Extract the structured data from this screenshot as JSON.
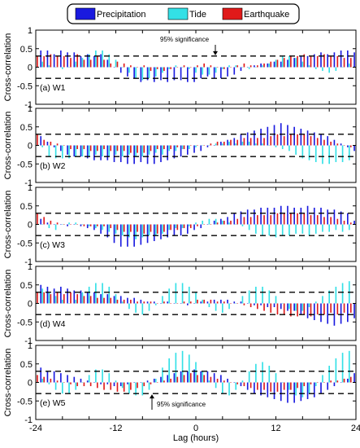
{
  "legend": {
    "items": [
      {
        "label": "Precipitation",
        "color": "#1a1adf"
      },
      {
        "label": "Tide",
        "color": "#33e0e6"
      },
      {
        "label": "Earthquake",
        "color": "#e01a1a"
      }
    ]
  },
  "chart_data": {
    "type": "bar",
    "xlabel": "Lag (hours)",
    "ylabel": "Cross-correlation",
    "xlim": [
      -24,
      24
    ],
    "ylim": [
      -1,
      1
    ],
    "x_ticks": [
      "-24",
      "-12",
      "0",
      "12",
      "24"
    ],
    "y_ticks": [
      "1",
      "0.5",
      "0",
      "-0.5",
      "-1"
    ],
    "significance_level": 0.3,
    "annotations": [
      {
        "panel": 0,
        "text": "95% significance"
      },
      {
        "panel": 4,
        "text": "95% significance"
      }
    ],
    "x": [
      -24,
      -23,
      -22,
      -21,
      -20,
      -19,
      -18,
      -17,
      -16,
      -15,
      -14,
      -13,
      -12,
      -11,
      -10,
      -9,
      -8,
      -7,
      -6,
      -5,
      -4,
      -3,
      -2,
      -1,
      0,
      1,
      2,
      3,
      4,
      5,
      6,
      7,
      8,
      9,
      10,
      11,
      12,
      13,
      14,
      15,
      16,
      17,
      18,
      19,
      20,
      21,
      22,
      23,
      24
    ],
    "panels": [
      {
        "label": "(a) W1",
        "series": [
          {
            "name": "Precipitation",
            "values": [
              0.4,
              0.45,
              0.45,
              0.35,
              0.45,
              0.4,
              0.4,
              0.3,
              0.35,
              0.3,
              0.35,
              0.2,
              0.0,
              -0.15,
              -0.25,
              -0.3,
              -0.4,
              -0.35,
              -0.4,
              -0.35,
              -0.4,
              -0.35,
              -0.35,
              -0.4,
              -0.4,
              -0.3,
              -0.25,
              -0.3,
              -0.3,
              -0.25,
              -0.2,
              -0.1,
              0.0,
              0.05,
              0.1,
              0.1,
              0.15,
              0.15,
              0.2,
              0.25,
              0.3,
              0.3,
              0.35,
              0.4,
              0.35,
              0.4,
              0.45,
              0.45,
              0.4
            ]
          },
          {
            "name": "Tide",
            "values": [
              0.25,
              0.15,
              0.05,
              0.0,
              -0.05,
              0.0,
              0.15,
              0.25,
              0.35,
              0.45,
              0.45,
              0.35,
              0.2,
              0.0,
              -0.15,
              -0.3,
              -0.35,
              -0.3,
              -0.25,
              -0.15,
              -0.05,
              0.05,
              0.0,
              -0.05,
              -0.15,
              -0.2,
              -0.2,
              -0.15,
              -0.05,
              0.05,
              0.05,
              0.0,
              -0.05,
              0.0,
              0.05,
              0.1,
              0.2,
              0.3,
              0.3,
              0.25,
              0.15,
              0.05,
              -0.05,
              -0.1,
              -0.15,
              -0.1,
              0.0,
              0.1,
              -0.3
            ]
          },
          {
            "name": "Earthquake",
            "values": [
              0.3,
              0.3,
              0.35,
              0.3,
              0.3,
              0.25,
              0.35,
              0.2,
              0.2,
              0.3,
              0.2,
              0.1,
              0.15,
              0.1,
              0.05,
              0.0,
              0.05,
              -0.1,
              -0.05,
              -0.1,
              -0.05,
              0.0,
              0.05,
              0.0,
              0.05,
              0.1,
              0.05,
              0.0,
              -0.05,
              0.0,
              0.05,
              0.1,
              0.05,
              0.05,
              0.1,
              0.15,
              0.2,
              0.25,
              0.3,
              0.3,
              0.35,
              0.3,
              0.3,
              0.35,
              0.3,
              0.3,
              0.25,
              0.25,
              0.3
            ]
          }
        ]
      },
      {
        "label": "(b) W2",
        "series": [
          {
            "name": "Precipitation",
            "values": [
              0.35,
              0.25,
              0.1,
              -0.05,
              -0.15,
              -0.25,
              -0.3,
              -0.3,
              -0.35,
              -0.4,
              -0.4,
              -0.4,
              -0.45,
              -0.45,
              -0.5,
              -0.5,
              -0.45,
              -0.5,
              -0.5,
              -0.45,
              -0.4,
              -0.35,
              -0.3,
              -0.25,
              -0.2,
              -0.15,
              -0.05,
              0.0,
              0.1,
              0.15,
              0.2,
              0.3,
              0.35,
              0.4,
              0.45,
              0.5,
              0.55,
              0.6,
              0.55,
              0.5,
              0.45,
              0.4,
              0.35,
              0.3,
              0.25,
              0.15,
              0.05,
              -0.05,
              -0.15
            ]
          },
          {
            "name": "Tide",
            "values": [
              0.25,
              -0.05,
              -0.3,
              -0.35,
              -0.35,
              -0.35,
              -0.3,
              -0.3,
              -0.3,
              -0.25,
              -0.3,
              -0.3,
              -0.25,
              -0.3,
              -0.25,
              -0.3,
              -0.3,
              -0.25,
              -0.2,
              -0.25,
              -0.15,
              -0.15,
              -0.1,
              -0.1,
              -0.05,
              0.0,
              0.0,
              0.05,
              0.05,
              0.1,
              0.05,
              0.1,
              0.1,
              0.05,
              0.05,
              0.0,
              -0.05,
              -0.1,
              -0.15,
              -0.25,
              -0.35,
              -0.4,
              -0.45,
              -0.5,
              -0.5,
              -0.45,
              -0.45,
              -0.4,
              -0.35
            ]
          },
          {
            "name": "Earthquake",
            "values": [
              0.3,
              0.15,
              0.1,
              0.05,
              0.0,
              -0.1,
              -0.1,
              -0.1,
              -0.15,
              -0.15,
              -0.1,
              -0.15,
              -0.15,
              -0.15,
              -0.2,
              -0.2,
              -0.2,
              -0.15,
              -0.1,
              -0.1,
              -0.1,
              -0.05,
              -0.1,
              0.0,
              0.0,
              0.0,
              0.05,
              0.1,
              0.1,
              0.15,
              0.15,
              0.2,
              0.2,
              0.2,
              0.2,
              0.25,
              0.3,
              0.25,
              0.3,
              0.3,
              0.3,
              0.25,
              0.2,
              0.15,
              0.1,
              0.05,
              0.0,
              -0.05,
              -0.15
            ]
          }
        ]
      },
      {
        "label": "(c) W3",
        "series": [
          {
            "name": "Precipitation",
            "values": [
              0.25,
              0.15,
              0.05,
              0.0,
              0.0,
              -0.05,
              0.0,
              -0.05,
              -0.1,
              -0.15,
              -0.25,
              -0.35,
              -0.5,
              -0.6,
              -0.6,
              -0.6,
              -0.55,
              -0.5,
              -0.45,
              -0.4,
              -0.35,
              -0.3,
              -0.3,
              -0.25,
              -0.15,
              -0.1,
              0.0,
              0.1,
              0.15,
              0.2,
              0.3,
              0.35,
              0.4,
              0.4,
              0.45,
              0.45,
              0.45,
              0.5,
              0.5,
              0.45,
              0.45,
              0.5,
              0.45,
              0.45,
              0.4,
              0.4,
              0.35,
              0.3,
              0.1
            ]
          },
          {
            "name": "Tide",
            "values": [
              0.15,
              0.0,
              -0.1,
              -0.15,
              0.0,
              0.05,
              0.05,
              0.0,
              -0.05,
              -0.1,
              -0.15,
              -0.2,
              -0.25,
              -0.3,
              -0.35,
              -0.4,
              -0.35,
              -0.3,
              -0.3,
              -0.25,
              -0.15,
              -0.1,
              -0.1,
              -0.05,
              0.05,
              0.1,
              0.15,
              0.15,
              0.1,
              0.05,
              0.0,
              -0.05,
              -0.15,
              -0.25,
              -0.3,
              -0.3,
              -0.35,
              -0.3,
              -0.3,
              -0.25,
              -0.25,
              -0.3,
              -0.25,
              -0.2,
              -0.2,
              -0.15,
              -0.2,
              -0.15,
              -0.15
            ]
          },
          {
            "name": "Earthquake",
            "values": [
              0.3,
              0.2,
              0.1,
              0.05,
              0.0,
              0.0,
              0.0,
              -0.05,
              -0.05,
              -0.05,
              -0.05,
              -0.1,
              -0.15,
              -0.2,
              -0.2,
              -0.2,
              -0.25,
              -0.2,
              -0.25,
              -0.2,
              -0.15,
              -0.15,
              -0.1,
              -0.1,
              -0.05,
              0.0,
              0.0,
              0.05,
              0.1,
              0.1,
              0.15,
              0.2,
              0.2,
              0.25,
              0.25,
              0.25,
              0.3,
              0.3,
              0.3,
              0.3,
              0.3,
              0.25,
              0.25,
              0.2,
              0.2,
              0.15,
              0.1,
              0.05,
              -0.15
            ]
          }
        ]
      },
      {
        "label": "(d) W4",
        "series": [
          {
            "name": "Precipitation",
            "values": [
              0.5,
              0.5,
              0.45,
              0.4,
              0.45,
              0.4,
              0.35,
              0.35,
              0.3,
              0.3,
              0.25,
              0.25,
              0.2,
              0.2,
              0.15,
              0.15,
              0.1,
              0.05,
              0.05,
              0.0,
              0.05,
              0.0,
              0.0,
              -0.05,
              0.0,
              0.05,
              0.05,
              0.1,
              0.1,
              0.1,
              0.05,
              0.05,
              0.0,
              -0.05,
              -0.05,
              -0.1,
              -0.1,
              -0.15,
              -0.2,
              -0.2,
              -0.3,
              -0.4,
              -0.45,
              -0.5,
              -0.55,
              -0.6,
              -0.55,
              -0.5,
              -0.4
            ]
          },
          {
            "name": "Tide",
            "values": [
              0.5,
              0.4,
              0.3,
              0.2,
              0.1,
              0.0,
              0.1,
              0.3,
              0.45,
              0.55,
              0.55,
              0.45,
              0.25,
              0.05,
              -0.15,
              -0.25,
              -0.3,
              -0.2,
              -0.05,
              0.2,
              0.4,
              0.55,
              0.55,
              0.45,
              0.3,
              0.1,
              -0.1,
              -0.2,
              -0.25,
              -0.15,
              0.0,
              0.2,
              0.35,
              0.45,
              0.45,
              0.35,
              0.2,
              0.0,
              -0.15,
              -0.2,
              -0.2,
              -0.1,
              0.05,
              0.2,
              0.35,
              0.45,
              0.55,
              0.6,
              0.55
            ]
          },
          {
            "name": "Earthquake",
            "values": [
              0.3,
              0.3,
              0.25,
              0.3,
              0.25,
              0.3,
              0.25,
              0.2,
              0.2,
              0.15,
              0.15,
              0.15,
              0.1,
              0.1,
              0.1,
              0.05,
              0.05,
              0.05,
              0.0,
              0.05,
              0.0,
              0.0,
              0.05,
              0.05,
              0.1,
              0.1,
              0.1,
              0.05,
              0.05,
              0.0,
              0.0,
              -0.05,
              -0.1,
              -0.15,
              -0.2,
              -0.25,
              -0.3,
              -0.3,
              -0.35,
              -0.35,
              -0.3,
              -0.35,
              -0.3,
              -0.3,
              -0.25,
              -0.3,
              -0.25,
              -0.25,
              -0.3
            ]
          }
        ]
      },
      {
        "label": "(e) W5",
        "series": [
          {
            "name": "Precipitation",
            "values": [
              0.35,
              0.4,
              0.3,
              0.3,
              0.25,
              0.2,
              0.15,
              0.1,
              0.05,
              0.0,
              -0.05,
              -0.05,
              -0.1,
              -0.1,
              -0.05,
              0.0,
              0.0,
              0.05,
              0.1,
              0.15,
              0.2,
              0.25,
              0.3,
              0.3,
              0.35,
              0.3,
              0.3,
              0.25,
              0.2,
              0.1,
              0.0,
              -0.1,
              -0.2,
              -0.3,
              -0.35,
              -0.4,
              -0.45,
              -0.5,
              -0.55,
              -0.55,
              -0.5,
              -0.45,
              -0.4,
              -0.3,
              -0.2,
              -0.1,
              0.0,
              0.1,
              0.25
            ]
          },
          {
            "name": "Tide",
            "values": [
              0.25,
              0.1,
              -0.05,
              -0.2,
              -0.3,
              -0.3,
              -0.2,
              0.0,
              0.2,
              0.35,
              0.35,
              0.25,
              0.05,
              -0.15,
              -0.3,
              -0.35,
              -0.35,
              -0.2,
              0.1,
              0.4,
              0.65,
              0.8,
              0.85,
              0.75,
              0.55,
              0.3,
              0.05,
              -0.15,
              -0.3,
              -0.35,
              -0.2,
              0.05,
              0.3,
              0.5,
              0.55,
              0.45,
              0.25,
              0.0,
              -0.2,
              -0.35,
              -0.4,
              -0.3,
              -0.1,
              0.2,
              0.45,
              0.65,
              0.8,
              0.85,
              0.8
            ]
          },
          {
            "name": "Earthquake",
            "values": [
              0.2,
              0.15,
              0.1,
              0.05,
              0.0,
              -0.05,
              -0.1,
              -0.1,
              -0.1,
              -0.15,
              -0.2,
              -0.2,
              -0.25,
              -0.25,
              -0.2,
              -0.15,
              -0.1,
              -0.05,
              0.0,
              0.05,
              0.1,
              0.15,
              0.2,
              0.25,
              0.2,
              0.2,
              0.15,
              0.1,
              0.05,
              0.0,
              -0.05,
              -0.1,
              -0.15,
              -0.2,
              -0.2,
              -0.25,
              -0.25,
              -0.2,
              -0.2,
              -0.15,
              -0.1,
              -0.05,
              0.0,
              0.0,
              0.05,
              0.05,
              0.1,
              0.15,
              0.2
            ]
          }
        ]
      }
    ]
  }
}
